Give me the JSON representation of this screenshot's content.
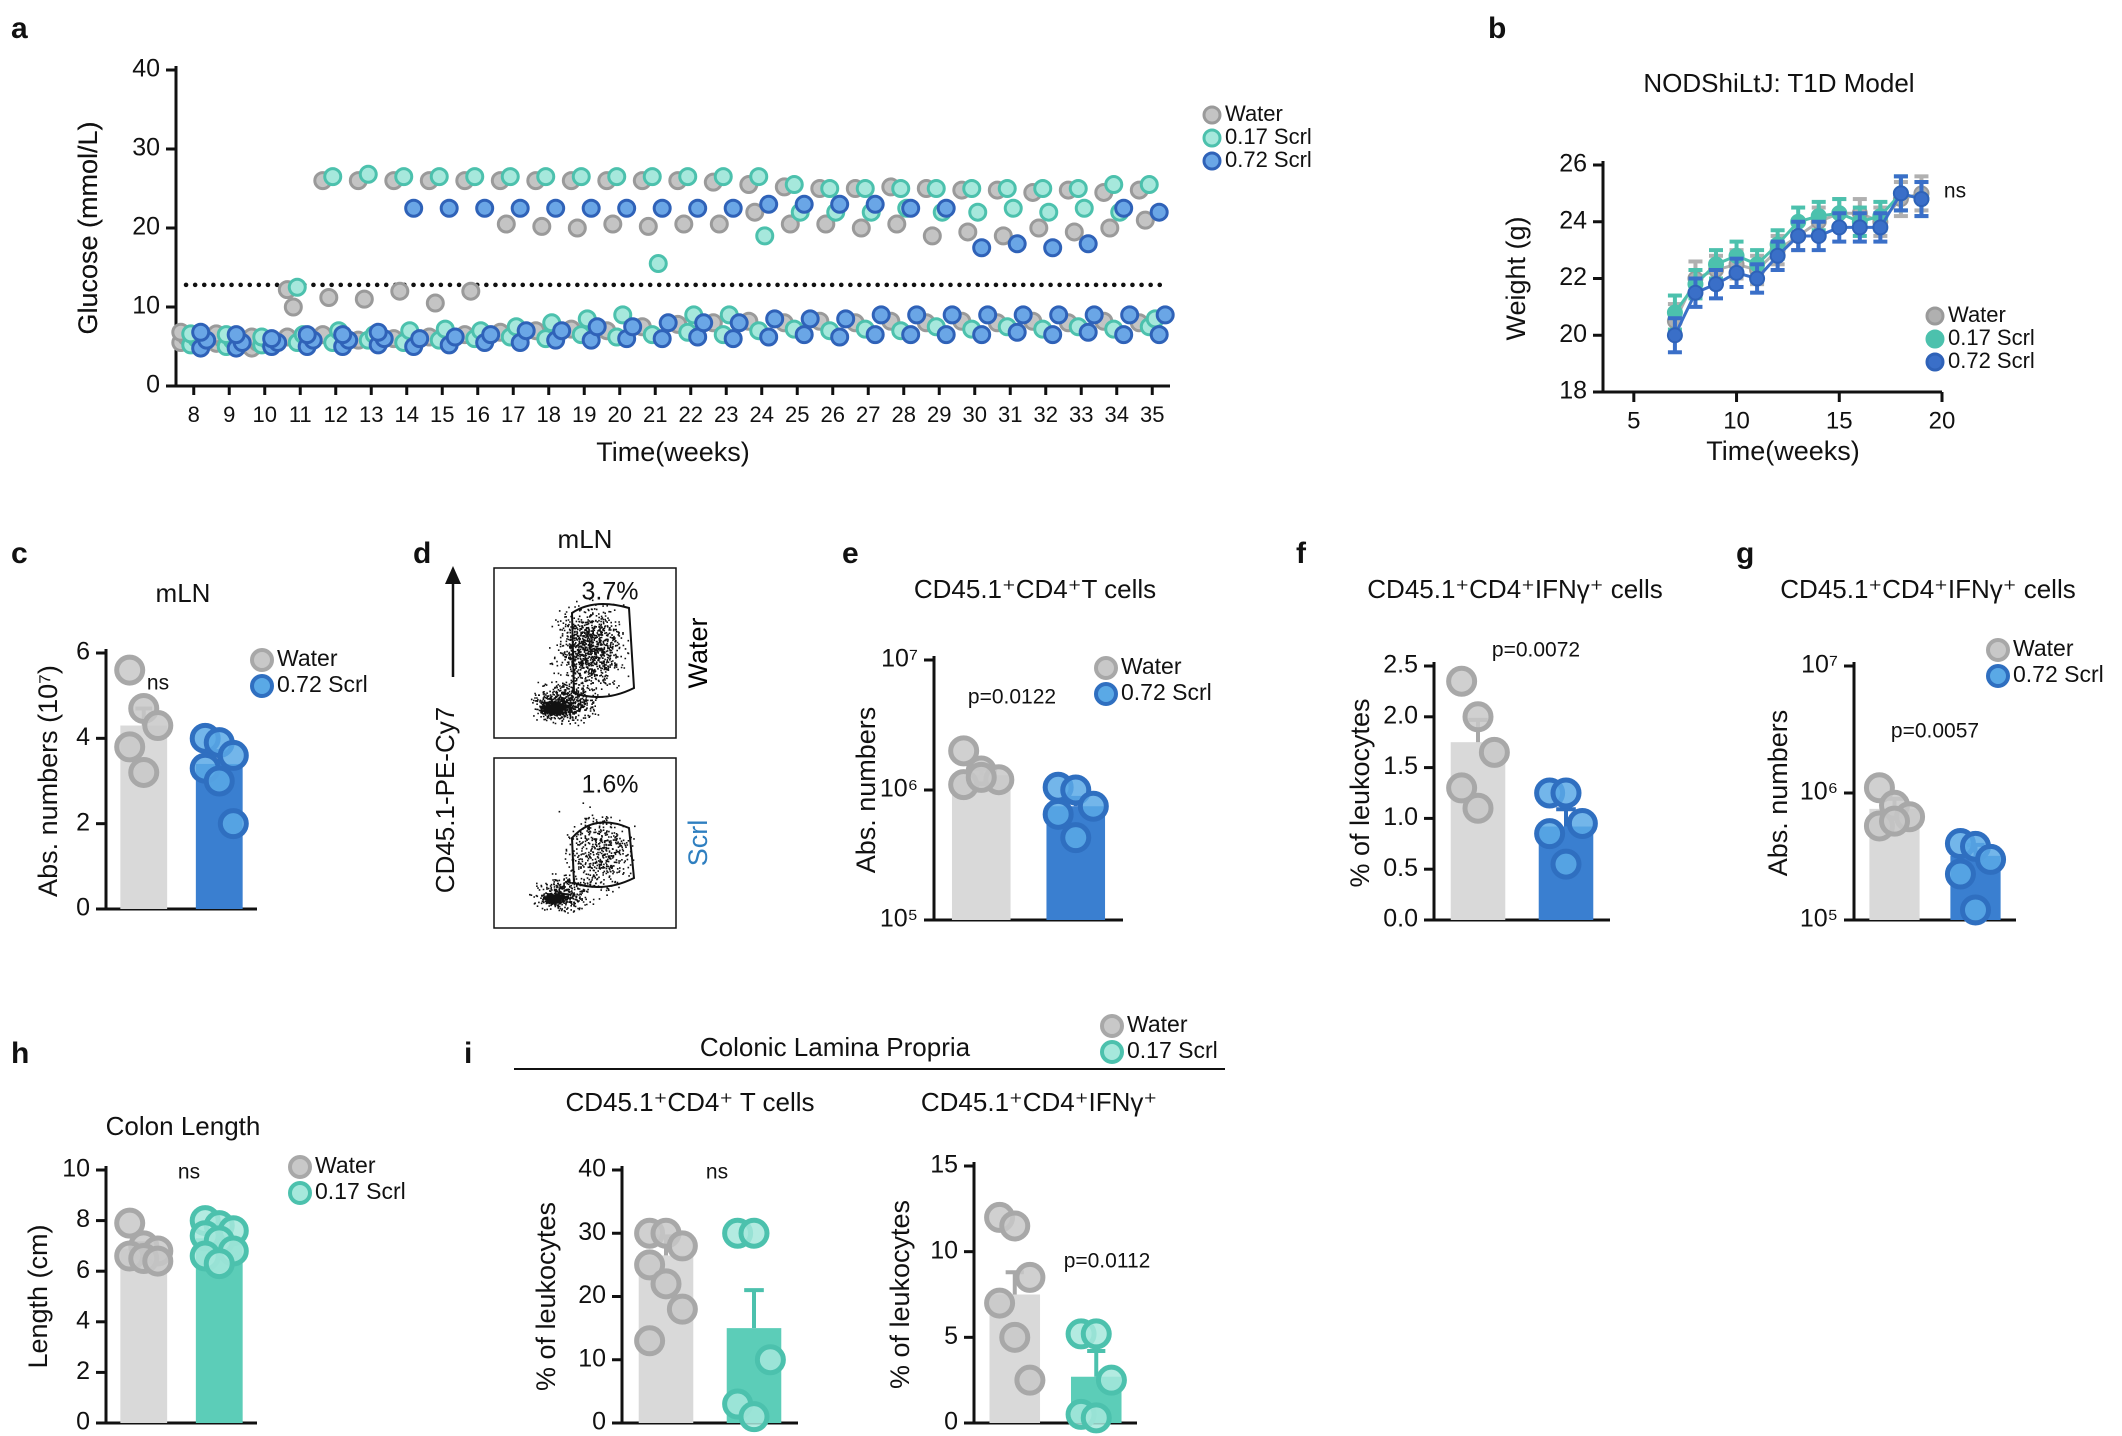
{
  "chart_data": [
    {
      "type": "scatter",
      "panel": "a",
      "ylabel": "Glucose (mmol/L)",
      "xlabel": "Time(weeks)",
      "categories": [
        8,
        9,
        10,
        11,
        12,
        13,
        14,
        15,
        16,
        17,
        18,
        19,
        20,
        21,
        22,
        23,
        24,
        25,
        26,
        27,
        28,
        29,
        30,
        31,
        32,
        33,
        34,
        35
      ],
      "ylim": [
        0,
        40
      ],
      "yticks": [
        0,
        10,
        20,
        30,
        40
      ],
      "threshold": 12.8,
      "series": [
        {
          "name": "Water",
          "color": "#c4c4c4",
          "edge": "#9a9a9a",
          "values": [
            [
              5.5,
              6.2,
              6.8
            ],
            [
              5.4,
              6.0,
              6.6
            ],
            [
              4.8,
              5.5,
              6.2
            ],
            [
              6.2,
              10.0,
              12.2
            ],
            [
              6.5,
              11.2,
              26.0
            ],
            [
              5.8,
              11.0,
              26.0
            ],
            [
              6.0,
              12.0,
              26.0
            ],
            [
              6.2,
              10.5,
              26.0
            ],
            [
              6.5,
              12.0,
              26.0
            ],
            [
              6.8,
              20.5,
              26.0
            ],
            [
              7.0,
              20.2,
              26.0
            ],
            [
              7.2,
              20.0,
              26.0
            ],
            [
              7.0,
              20.5,
              26.0
            ],
            [
              7.5,
              20.2,
              26.0
            ],
            [
              7.8,
              20.5,
              26.0
            ],
            [
              8.0,
              20.5,
              25.8
            ],
            [
              8.2,
              22.0,
              25.5
            ],
            [
              8.0,
              20.5,
              25.2
            ],
            [
              8.2,
              20.5,
              25.0
            ],
            [
              8.0,
              20.0,
              25.0
            ],
            [
              8.2,
              20.5,
              25.2
            ],
            [
              8.0,
              19.0,
              25.0
            ],
            [
              8.2,
              19.5,
              24.8
            ],
            [
              8.0,
              19.0,
              24.8
            ],
            [
              8.2,
              20.0,
              24.5
            ],
            [
              8.0,
              19.5,
              24.8
            ],
            [
              8.2,
              20.0,
              24.5
            ],
            [
              8.0,
              21.0,
              24.8
            ]
          ]
        },
        {
          "name": "0.17 Scrl",
          "color": "#a6e8dc",
          "edge": "#4cc1ad",
          "values": [
            [
              5.2,
              6.0,
              6.6
            ],
            [
              5.0,
              5.8,
              6.5
            ],
            [
              5.2,
              5.8,
              6.2
            ],
            [
              5.5,
              6.5,
              12.5
            ],
            [
              5.5,
              7.0,
              26.5
            ],
            [
              5.8,
              6.5,
              26.8
            ],
            [
              5.5,
              7.0,
              26.5
            ],
            [
              5.8,
              7.2,
              26.5
            ],
            [
              6.0,
              7.0,
              26.5
            ],
            [
              6.2,
              7.5,
              26.5
            ],
            [
              6.0,
              8.0,
              26.5
            ],
            [
              6.5,
              8.5,
              26.5
            ],
            [
              6.2,
              9.0,
              26.5
            ],
            [
              6.5,
              15.5,
              26.5
            ],
            [
              6.8,
              9.0,
              26.5
            ],
            [
              6.5,
              9.0,
              26.5
            ],
            [
              7.0,
              19.0,
              26.5
            ],
            [
              7.2,
              22.0,
              25.5
            ],
            [
              7.0,
              22.0,
              25.0
            ],
            [
              7.2,
              22.0,
              25.0
            ],
            [
              7.0,
              22.5,
              25.0
            ],
            [
              7.5,
              22.0,
              25.0
            ],
            [
              7.2,
              22.0,
              25.0
            ],
            [
              7.5,
              22.5,
              25.0
            ],
            [
              7.2,
              22.0,
              25.0
            ],
            [
              7.5,
              22.5,
              25.0
            ],
            [
              7.2,
              22.0,
              25.5
            ],
            [
              7.5,
              8.5,
              25.5
            ]
          ]
        },
        {
          "name": "0.72 Scrl",
          "color": "#6aa6e6",
          "edge": "#2f62b8",
          "values": [
            [
              4.8,
              5.8,
              6.8
            ],
            [
              4.8,
              5.5,
              6.5
            ],
            [
              5.0,
              5.5,
              6.0
            ],
            [
              5.0,
              5.8,
              6.5
            ],
            [
              5.0,
              5.8,
              6.5
            ],
            [
              5.2,
              6.0,
              6.8
            ],
            [
              5.0,
              6.0,
              22.5
            ],
            [
              5.2,
              6.2,
              22.5
            ],
            [
              5.5,
              6.5,
              22.5
            ],
            [
              5.5,
              7.0,
              22.5
            ],
            [
              5.8,
              7.0,
              22.5
            ],
            [
              5.8,
              7.5,
              22.5
            ],
            [
              6.0,
              7.5,
              22.5
            ],
            [
              6.0,
              8.0,
              22.5
            ],
            [
              6.2,
              8.0,
              22.5
            ],
            [
              6.0,
              8.0,
              22.5
            ],
            [
              6.2,
              8.5,
              23.0
            ],
            [
              6.5,
              8.5,
              23.0
            ],
            [
              6.2,
              8.5,
              23.0
            ],
            [
              6.5,
              9.0,
              23.0
            ],
            [
              6.5,
              9.0,
              22.5
            ],
            [
              6.5,
              9.0,
              22.5
            ],
            [
              6.5,
              9.0,
              17.5
            ],
            [
              6.8,
              9.0,
              18.0
            ],
            [
              6.5,
              9.0,
              17.5
            ],
            [
              6.8,
              9.0,
              18.0
            ],
            [
              6.5,
              9.0,
              22.5
            ],
            [
              6.5,
              9.0,
              22.0
            ]
          ]
        }
      ]
    },
    {
      "type": "line",
      "panel": "b",
      "title": "NODShiLtJ: T1D Model",
      "ylabel": "Weight (g)",
      "xlabel": "Time(weeks)",
      "annotation": "ns",
      "x": [
        7,
        8,
        9,
        10,
        11,
        12,
        13,
        14,
        15,
        16,
        17,
        18,
        19
      ],
      "xlim": [
        3.5,
        20
      ],
      "xticks": [
        5,
        10,
        15,
        20
      ],
      "ylim": [
        18,
        26
      ],
      "yticks": [
        18,
        20,
        22,
        24,
        26
      ],
      "series": [
        {
          "name": "Water",
          "color": "#b0b0b0",
          "edge": "#9a9a9a",
          "values": [
            20.5,
            22.0,
            22.3,
            22.5,
            22.3,
            23.0,
            23.5,
            24.0,
            24.3,
            24.3,
            24.0,
            24.8,
            25.0
          ],
          "errors": [
            0.6,
            0.6,
            0.5,
            0.5,
            0.5,
            0.5,
            0.5,
            0.5,
            0.5,
            0.5,
            0.5,
            0.6,
            0.6
          ]
        },
        {
          "name": "0.17 Scrl",
          "color": "#4cc1ad",
          "edge": "#4cc1ad",
          "values": [
            20.8,
            21.8,
            22.5,
            22.8,
            22.5,
            23.2,
            24.0,
            24.2,
            24.3,
            24.0,
            24.2,
            25.0,
            24.8
          ],
          "errors": [
            0.6,
            0.5,
            0.5,
            0.5,
            0.5,
            0.5,
            0.5,
            0.5,
            0.5,
            0.5,
            0.5,
            0.6,
            0.6
          ]
        },
        {
          "name": "0.72 Scrl",
          "color": "#3a6fc8",
          "edge": "#2f62b8",
          "values": [
            20.0,
            21.5,
            21.8,
            22.2,
            22.0,
            22.8,
            23.5,
            23.5,
            23.8,
            23.8,
            23.8,
            25.0,
            24.8
          ],
          "errors": [
            0.6,
            0.5,
            0.5,
            0.5,
            0.5,
            0.5,
            0.5,
            0.5,
            0.5,
            0.5,
            0.5,
            0.6,
            0.6
          ]
        }
      ]
    },
    {
      "type": "bar",
      "panel": "c",
      "title": "mLN",
      "ylabel": "Abs. numbers (10⁷)",
      "annotation": "ns",
      "categories": [
        "Water",
        "0.72 Scrl"
      ],
      "values": [
        4.3,
        3.4
      ],
      "errors": [
        0.4,
        0.3
      ],
      "points": [
        [
          5.6,
          4.7,
          4.3,
          3.8,
          3.2
        ],
        [
          4.0,
          3.9,
          3.6,
          3.3,
          3.0,
          2.0
        ]
      ],
      "ylim": [
        0,
        6
      ],
      "yticks": [
        0,
        2,
        4,
        6
      ],
      "colors": [
        "#d9d9d9",
        "#3a7fd0"
      ],
      "point_colors": [
        "#c8c8c8",
        "#5aa9e6"
      ],
      "edge_colors": [
        "#a8a8a8",
        "#2f6fc0"
      ]
    },
    {
      "type": "flow",
      "panel": "d",
      "title": "mLN",
      "ylabel": "CD45.1-PE-Cy7",
      "gates": [
        {
          "percent": "3.7%",
          "sample": "Water"
        },
        {
          "percent": "1.6%",
          "sample": "Scrl"
        }
      ],
      "sample_colors": [
        "#000000",
        "#2f7fc0"
      ]
    },
    {
      "type": "bar",
      "panel": "e",
      "title": "CD45.1⁺CD4⁺T cells",
      "ylabel": "Abs. numbers",
      "annotation": "p=0.0122",
      "log": true,
      "categories": [
        "Water",
        "0.72 Scrl"
      ],
      "values": [
        1300000,
        750000
      ],
      "errors": [
        150000,
        120000
      ],
      "points": [
        [
          2000000,
          1400000,
          1200000,
          1100000,
          1250000
        ],
        [
          1050000,
          1000000,
          750000,
          650000,
          430000
        ]
      ],
      "ylim": [
        100000,
        10000000
      ],
      "yticks": [
        {
          "value": 100000,
          "label": "10⁵"
        },
        {
          "value": 1000000,
          "label": "10⁶"
        },
        {
          "value": 10000000,
          "label": "10⁷"
        }
      ],
      "colors": [
        "#d9d9d9",
        "#3a7fd0"
      ],
      "point_colors": [
        "#c8c8c8",
        "#5aa9e6"
      ],
      "edge_colors": [
        "#a8a8a8",
        "#2f6fc0"
      ]
    },
    {
      "type": "bar",
      "panel": "f",
      "title": "CD45.1⁺CD4⁺IFNγ⁺ cells",
      "ylabel": "% of leukocytes",
      "annotation": "p=0.0072",
      "values": [
        1.75,
        0.92
      ],
      "errors": [
        0.22,
        0.17
      ],
      "points": [
        [
          2.35,
          2.0,
          1.65,
          1.3,
          1.1
        ],
        [
          1.25,
          1.25,
          0.95,
          0.85,
          0.55
        ]
      ],
      "ylim": [
        0,
        2.5
      ],
      "yticks": [
        {
          "value": 0,
          "label": "0.0"
        },
        0.5,
        {
          "value": 1,
          "label": "1.0"
        },
        1.5,
        {
          "value": 2,
          "label": "2.0"
        },
        2.5
      ],
      "colors": [
        "#d9d9d9",
        "#3a7fd0"
      ],
      "point_colors": [
        "#c8c8c8",
        "#5aa9e6"
      ],
      "edge_colors": [
        "#a8a8a8",
        "#2f6fc0"
      ]
    },
    {
      "type": "bar",
      "panel": "g",
      "title": "CD45.1⁺CD4⁺IFNγ⁺ cells",
      "ylabel": "Abs. numbers",
      "annotation": "p=0.0057",
      "log": true,
      "categories": [
        "Water",
        "0.72 Scrl"
      ],
      "values": [
        750000,
        320000
      ],
      "errors": [
        150000,
        70000
      ],
      "points": [
        [
          1100000,
          800000,
          650000,
          550000,
          600000
        ],
        [
          400000,
          380000,
          300000,
          230000,
          120000
        ]
      ],
      "ylim": [
        100000,
        10000000
      ],
      "yticks": [
        {
          "value": 100000,
          "label": "10⁵"
        },
        {
          "value": 1000000,
          "label": "10⁶"
        },
        {
          "value": 10000000,
          "label": "10⁷"
        }
      ],
      "colors": [
        "#d9d9d9",
        "#3a7fd0"
      ],
      "point_colors": [
        "#c8c8c8",
        "#5aa9e6"
      ],
      "edge_colors": [
        "#a8a8a8",
        "#2f6fc0"
      ]
    },
    {
      "type": "bar",
      "panel": "h",
      "title": "Colon Length",
      "ylabel": "Length (cm)",
      "annotation": "ns",
      "categories": [
        "Water",
        "0.17 Scrl"
      ],
      "values": [
        6.9,
        7.3
      ],
      "errors": [
        0.2,
        0.25
      ],
      "points": [
        [
          7.9,
          7.0,
          6.8,
          6.6,
          6.5,
          6.4
        ],
        [
          8.0,
          7.8,
          7.6,
          7.4,
          7.2,
          6.8,
          6.6,
          6.3
        ]
      ],
      "ylim": [
        0,
        10
      ],
      "yticks": [
        0,
        2,
        4,
        6,
        8,
        10
      ],
      "colors": [
        "#d9d9d9",
        "#5ccdb8"
      ],
      "point_colors": [
        "#c8c8c8",
        "#a6e8dc"
      ],
      "edge_colors": [
        "#a8a8a8",
        "#4cc1ad"
      ]
    },
    {
      "type": "bar",
      "panel": "i",
      "group_title": "Colonic Lamina Propria",
      "title": "CD45.1⁺CD4⁺ T cells",
      "ylabel": "% of leukocytes",
      "annotation": "ns",
      "categories": [
        "Water",
        "0.17 Scrl"
      ],
      "values": [
        26.5,
        15
      ],
      "errors": [
        3,
        6
      ],
      "points": [
        [
          30,
          30,
          28,
          25,
          22,
          18,
          13
        ],
        [
          30,
          30,
          10,
          3,
          1
        ]
      ],
      "ylim": [
        0,
        40
      ],
      "yticks": [
        0,
        10,
        20,
        30,
        40
      ],
      "colors": [
        "#d9d9d9",
        "#5ccdb8"
      ],
      "point_colors": [
        "#c8c8c8",
        "#a6e8dc"
      ],
      "edge_colors": [
        "#a8a8a8",
        "#4cc1ad"
      ]
    },
    {
      "type": "bar",
      "title": "CD45.1⁺CD4⁺IFNγ⁺",
      "ylabel": "% of leukocytes",
      "annotation": "p=0.0112",
      "values": [
        7.5,
        2.7
      ],
      "errors": [
        1.3,
        1.5
      ],
      "points": [
        [
          12,
          11.5,
          8.5,
          7,
          5,
          2.5
        ],
        [
          5.2,
          5.2,
          2.5,
          0.5,
          0.3
        ]
      ],
      "ylim": [
        0,
        15
      ],
      "yticks": [
        0,
        5,
        10,
        15
      ],
      "colors": [
        "#d9d9d9",
        "#5ccdb8"
      ],
      "point_colors": [
        "#c8c8c8",
        "#a6e8dc"
      ],
      "edge_colors": [
        "#a8a8a8",
        "#4cc1ad"
      ]
    }
  ]
}
